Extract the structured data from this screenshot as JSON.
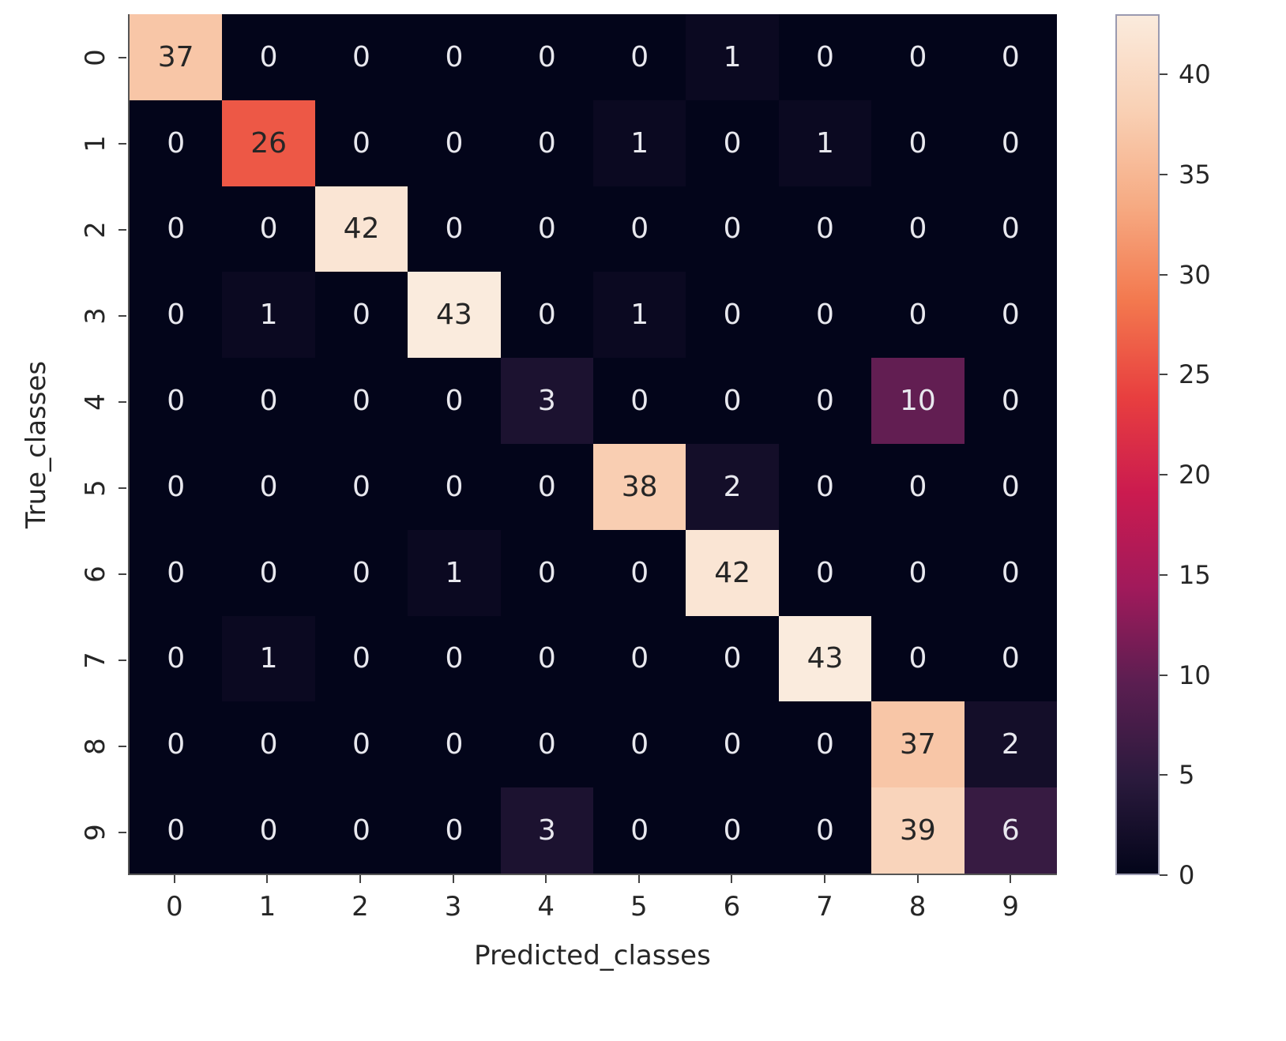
{
  "chart_data": {
    "type": "heatmap",
    "title": "",
    "xlabel": "Predicted_classes",
    "ylabel": "True_classes",
    "x_ticks": [
      "0",
      "1",
      "2",
      "3",
      "4",
      "5",
      "6",
      "7",
      "8",
      "9"
    ],
    "y_ticks": [
      "0",
      "1",
      "2",
      "3",
      "4",
      "5",
      "6",
      "7",
      "8",
      "9"
    ],
    "matrix": [
      [
        37,
        0,
        0,
        0,
        0,
        0,
        1,
        0,
        0,
        0
      ],
      [
        0,
        26,
        0,
        0,
        0,
        1,
        0,
        1,
        0,
        0
      ],
      [
        0,
        0,
        42,
        0,
        0,
        0,
        0,
        0,
        0,
        0
      ],
      [
        0,
        1,
        0,
        43,
        0,
        1,
        0,
        0,
        0,
        0
      ],
      [
        0,
        0,
        0,
        0,
        3,
        0,
        0,
        0,
        10,
        0
      ],
      [
        0,
        0,
        0,
        0,
        0,
        38,
        2,
        0,
        0,
        0
      ],
      [
        0,
        0,
        0,
        1,
        0,
        0,
        42,
        0,
        0,
        0
      ],
      [
        0,
        1,
        0,
        0,
        0,
        0,
        0,
        43,
        0,
        0
      ],
      [
        0,
        0,
        0,
        0,
        0,
        0,
        0,
        0,
        37,
        2
      ],
      [
        0,
        0,
        0,
        0,
        3,
        0,
        0,
        0,
        39,
        6
      ]
    ],
    "colorbar": {
      "ticks": [
        "0",
        "5",
        "10",
        "15",
        "20",
        "25",
        "30",
        "35",
        "40"
      ],
      "range": [
        0,
        43
      ],
      "colormap": "rocket"
    },
    "grid": false,
    "legend_position": "right (colorbar)"
  },
  "colors": {
    "cmap_stops": [
      "#03051a",
      "#2b1a3d",
      "#5b1e51",
      "#a11a5b",
      "#cb1b4f",
      "#e83f3f",
      "#f3784e",
      "#f6aa82",
      "#f9d0b4",
      "#faebdd"
    ],
    "text_light": "#e8e8ee",
    "text_dark": "#262626"
  }
}
